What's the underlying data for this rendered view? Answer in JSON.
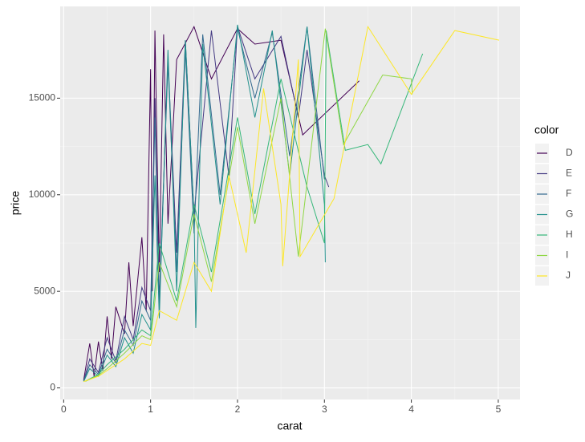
{
  "chart_data": {
    "type": "line",
    "x_label": "carat",
    "y_label": "price",
    "xlim": [
      -0.04,
      5.25
    ],
    "ylim": [
      -600,
      19750
    ],
    "xticks": [
      0,
      1,
      2,
      3,
      4,
      5
    ],
    "yticks": [
      0,
      5000,
      10000,
      15000
    ],
    "grid": true,
    "legend_position": "right",
    "legend_title": "color",
    "series": [
      {
        "name": "D",
        "color": "#440154",
        "x": [
          0.23,
          0.3,
          0.35,
          0.4,
          0.45,
          0.5,
          0.55,
          0.6,
          0.7,
          0.75,
          0.8,
          0.9,
          0.95,
          1.0,
          1.02,
          1.05,
          1.1,
          1.15,
          1.2,
          1.3,
          1.5,
          1.7,
          2.0,
          2.2,
          2.5,
          2.75,
          3.4
        ],
        "values": [
          400,
          2300,
          600,
          2400,
          900,
          3700,
          1500,
          4200,
          2800,
          6500,
          3200,
          7800,
          4000,
          16500,
          5000,
          18500,
          6000,
          18300,
          8500,
          17000,
          18700,
          16000,
          18600,
          17800,
          18000,
          13100,
          15900
        ]
      },
      {
        "name": "E",
        "color": "#443A83",
        "x": [
          0.23,
          0.3,
          0.4,
          0.5,
          0.6,
          0.7,
          0.8,
          0.9,
          1.0,
          1.05,
          1.1,
          1.2,
          1.3,
          1.4,
          1.5,
          1.7,
          1.9,
          2.0,
          2.2,
          2.5,
          2.7,
          2.8,
          3.0,
          3.05
        ],
        "values": [
          350,
          1500,
          800,
          2600,
          1400,
          3700,
          2500,
          5200,
          4000,
          15000,
          4500,
          17000,
          7000,
          18000,
          9000,
          18500,
          11000,
          18700,
          16000,
          18200,
          14000,
          17500,
          11000,
          10400
        ]
      },
      {
        "name": "F",
        "color": "#31688E",
        "x": [
          0.23,
          0.3,
          0.4,
          0.5,
          0.6,
          0.7,
          0.8,
          0.9,
          1.0,
          1.05,
          1.1,
          1.2,
          1.3,
          1.4,
          1.5,
          1.6,
          1.8,
          2.0,
          2.2,
          2.4,
          2.6,
          2.8,
          3.0
        ],
        "values": [
          350,
          1200,
          700,
          2000,
          1300,
          3000,
          2200,
          4500,
          3500,
          14000,
          4200,
          16800,
          6000,
          17500,
          8000,
          18300,
          10000,
          18600,
          15000,
          18400,
          12000,
          18700,
          10800
        ]
      },
      {
        "name": "G",
        "color": "#21908C",
        "x": [
          0.23,
          0.3,
          0.4,
          0.5,
          0.6,
          0.7,
          0.8,
          0.9,
          1.0,
          1.05,
          1.1,
          1.2,
          1.3,
          1.4,
          1.5,
          1.52,
          1.6,
          1.8,
          2.0,
          2.2,
          2.4,
          2.6,
          2.8,
          3.0,
          3.01
        ],
        "values": [
          330,
          1000,
          600,
          1700,
          1100,
          2600,
          1800,
          3800,
          3000,
          11000,
          3600,
          17500,
          5000,
          18000,
          9000,
          3100,
          17800,
          9500,
          18800,
          14000,
          18500,
          11000,
          18700,
          9500,
          6500
        ]
      },
      {
        "name": "H",
        "color": "#35B779",
        "x": [
          0.25,
          0.4,
          0.5,
          0.7,
          0.9,
          1.0,
          1.1,
          1.3,
          1.5,
          1.7,
          2.0,
          2.2,
          2.5,
          2.8,
          3.0,
          3.02,
          3.24,
          3.5,
          3.65,
          4.13
        ],
        "values": [
          350,
          700,
          1200,
          2000,
          3000,
          2700,
          7500,
          4500,
          9500,
          6000,
          14000,
          9000,
          16000,
          10400,
          7500,
          18500,
          12300,
          12600,
          11600,
          17300
        ]
      },
      {
        "name": "I",
        "color": "#8FD744",
        "x": [
          0.25,
          0.4,
          0.5,
          0.7,
          0.9,
          1.0,
          1.1,
          1.3,
          1.5,
          1.7,
          2.0,
          2.2,
          2.5,
          2.7,
          3.01,
          3.22,
          3.67,
          4.0,
          4.01
        ],
        "values": [
          340,
          650,
          1000,
          1800,
          2700,
          2500,
          6500,
          4200,
          9000,
          5500,
          13500,
          8500,
          15000,
          6800,
          18600,
          12600,
          16200,
          16000,
          15200
        ]
      },
      {
        "name": "J",
        "color": "#FDE725",
        "x": [
          0.23,
          0.4,
          0.5,
          0.7,
          0.9,
          1.0,
          1.1,
          1.3,
          1.5,
          1.7,
          1.9,
          2.1,
          2.3,
          2.5,
          2.52,
          2.7,
          2.72,
          3.11,
          3.5,
          4.0,
          4.5,
          5.01
        ],
        "values": [
          330,
          600,
          900,
          1500,
          2300,
          2200,
          4000,
          3500,
          6500,
          5000,
          11000,
          7000,
          15500,
          9500,
          6300,
          17000,
          6800,
          9800,
          18700,
          15200,
          18500,
          18000
        ]
      }
    ]
  }
}
